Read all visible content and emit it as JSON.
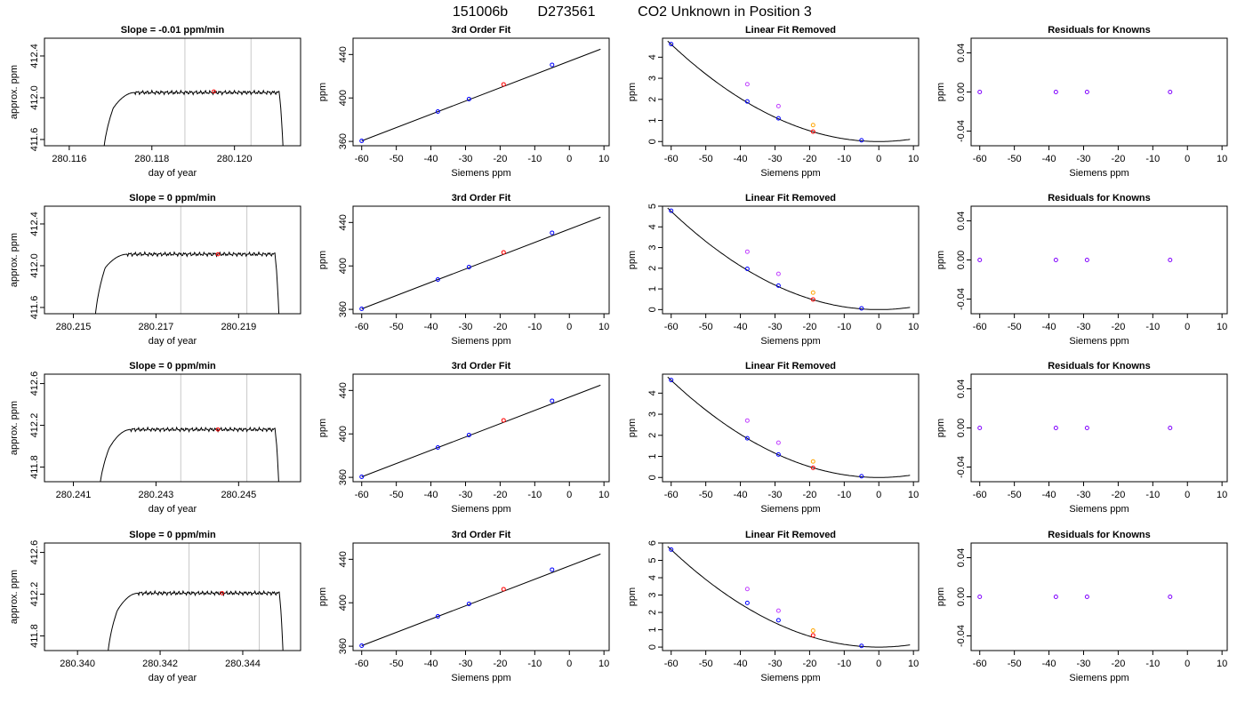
{
  "title": {
    "run": "151006b",
    "tank": "D273561",
    "description": "CO2 Unknown in Position  3"
  },
  "colors": {
    "known": "#0000ff",
    "unknown": "#ff0000",
    "raw_unknown": "#ffa500",
    "raw_known": "#c040ff",
    "fit_line": "#000000",
    "window_line": "#c8c8c8",
    "residual": "#8000ff"
  },
  "chart_data": [
    {
      "type": "line",
      "title": "Slope =  -0.01  ppm/min",
      "xlabel": "day of year",
      "ylabel": "approx. ppm",
      "xlim": [
        280.1154,
        280.1216
      ],
      "ylim": [
        411.54,
        412.57
      ],
      "xticks": [
        "280.116",
        "280.118",
        "280.120"
      ],
      "yticks": [
        "411.6",
        "412.0",
        "412.4"
      ],
      "window": [
        280.1188,
        280.1204
      ],
      "trace": {
        "start": 280.1168,
        "end": 280.1212,
        "rise": [
          412.02,
          412.06,
          412.08
        ],
        "plateau": 412.05,
        "ripple": 0.02,
        "end_drop": 411.3
      },
      "mean_point": [
        280.1195,
        412.06
      ]
    },
    {
      "type": "scatter",
      "title": "3rd Order Fit",
      "xlabel": "Siemens ppm",
      "ylabel": "ppm",
      "xlim": [
        -62.5,
        11.5
      ],
      "ylim": [
        356,
        455
      ],
      "xticks": [
        "-60",
        "-50",
        "-40",
        "-30",
        "-20",
        "-10",
        "0",
        "10"
      ],
      "yticks": [
        "360",
        "400",
        "440"
      ],
      "known_x": [
        -60,
        -38,
        -29,
        -5
      ],
      "known_y": [
        360.5,
        387.5,
        399,
        430.5
      ],
      "unknown_x": [
        -19
      ],
      "unknown_y": [
        412.5
      ],
      "fit": {
        "x0": -60,
        "y0": 360.5,
        "slope": 1.223,
        "x_end": 9
      }
    },
    {
      "type": "scatter",
      "title": "Linear Fit Removed",
      "xlabel": "Siemens ppm",
      "ylabel": "ppm",
      "xlim": [
        -62.5,
        11.5
      ],
      "ylim": [
        -0.2,
        4.9
      ],
      "xticks": [
        "-60",
        "-50",
        "-40",
        "-30",
        "-20",
        "-10",
        "0",
        "10"
      ],
      "yticks": [
        "0",
        "1",
        "2",
        "3",
        "4"
      ],
      "known_x": [
        -60,
        -38,
        -29,
        -5
      ],
      "known_y": [
        4.62,
        1.9,
        1.1,
        0.06
      ],
      "raw_known_x": [
        -38,
        -29
      ],
      "raw_known_y": [
        2.72,
        1.68
      ],
      "unknown_x": [
        -19
      ],
      "unknown_y": [
        0.47
      ],
      "raw_unknown_x": [
        -19
      ],
      "raw_unknown_y": [
        0.78
      ],
      "curve": {
        "a": 0.00128,
        "x_vertex": 0,
        "x_end": 9
      }
    },
    {
      "type": "scatter",
      "title": "Residuals for Knowns",
      "xlabel": "Siemens ppm",
      "ylabel": "ppm",
      "xlim": [
        -62.5,
        11.5
      ],
      "ylim": [
        -0.055,
        0.055
      ],
      "xticks": [
        "-60",
        "-50",
        "-40",
        "-30",
        "-20",
        "-10",
        "0",
        "10"
      ],
      "yticks": [
        "-0.04",
        "0.00",
        "0.04"
      ],
      "x": [
        -60,
        -38,
        -29,
        -5
      ],
      "y": [
        0,
        0,
        0,
        0
      ]
    },
    {
      "type": "line",
      "title": "Slope =  0  ppm/min",
      "xlabel": "day of year",
      "ylabel": "approx. ppm",
      "xlim": [
        280.2143,
        280.2205
      ],
      "ylim": [
        411.54,
        412.57
      ],
      "xticks": [
        "280.215",
        "280.217",
        "280.219"
      ],
      "yticks": [
        "411.6",
        "412.0",
        "412.4"
      ],
      "window": [
        280.2176,
        280.2192
      ],
      "trace": {
        "start": 280.2155,
        "end": 280.22,
        "rise": [
          412.1,
          412.13,
          412.13
        ],
        "plateau": 412.11,
        "ripple": 0.02,
        "end_drop": 411.3
      },
      "mean_point": [
        280.2185,
        412.11
      ]
    },
    {
      "type": "scatter",
      "title": "3rd Order Fit",
      "xlabel": "Siemens ppm",
      "ylabel": "ppm",
      "xlim": [
        -62.5,
        11.5
      ],
      "ylim": [
        356,
        455
      ],
      "xticks": [
        "-60",
        "-50",
        "-40",
        "-30",
        "-20",
        "-10",
        "0",
        "10"
      ],
      "yticks": [
        "360",
        "400",
        "440"
      ],
      "known_x": [
        -60,
        -38,
        -29,
        -5
      ],
      "known_y": [
        360.5,
        387.5,
        399,
        430.5
      ],
      "unknown_x": [
        -19
      ],
      "unknown_y": [
        412.5
      ],
      "fit": {
        "x0": -60,
        "y0": 360.5,
        "slope": 1.223,
        "x_end": 9
      }
    },
    {
      "type": "scatter",
      "title": "Linear Fit Removed",
      "xlabel": "Siemens ppm",
      "ylabel": "ppm",
      "xlim": [
        -62.5,
        11.5
      ],
      "ylim": [
        -0.2,
        5.0
      ],
      "xticks": [
        "-60",
        "-50",
        "-40",
        "-30",
        "-20",
        "-10",
        "0",
        "10"
      ],
      "yticks": [
        "0",
        "1",
        "2",
        "3",
        "4",
        "5"
      ],
      "known_x": [
        -60,
        -38,
        -29,
        -5
      ],
      "known_y": [
        4.78,
        1.97,
        1.16,
        0.06
      ],
      "raw_known_x": [
        -38,
        -29
      ],
      "raw_known_y": [
        2.8,
        1.73
      ],
      "unknown_x": [
        -19
      ],
      "unknown_y": [
        0.49
      ],
      "raw_unknown_x": [
        -19
      ],
      "raw_unknown_y": [
        0.82
      ],
      "curve": {
        "a": 0.00132,
        "x_vertex": 0,
        "x_end": 9
      }
    },
    {
      "type": "scatter",
      "title": "Residuals for Knowns",
      "xlabel": "Siemens ppm",
      "ylabel": "ppm",
      "xlim": [
        -62.5,
        11.5
      ],
      "ylim": [
        -0.055,
        0.055
      ],
      "xticks": [
        "-60",
        "-50",
        "-40",
        "-30",
        "-20",
        "-10",
        "0",
        "10"
      ],
      "yticks": [
        "-0.04",
        "0.00",
        "0.04"
      ],
      "x": [
        -60,
        -38,
        -29,
        -5
      ],
      "y": [
        0,
        0,
        0,
        0
      ]
    },
    {
      "type": "line",
      "title": "Slope =  0  ppm/min",
      "xlabel": "day of year",
      "ylabel": "approx. ppm",
      "xlim": [
        280.2403,
        280.2465
      ],
      "ylim": [
        411.66,
        412.69
      ],
      "xticks": [
        "280.241",
        "280.243",
        "280.245"
      ],
      "yticks": [
        "411.8",
        "412.2",
        "412.6"
      ],
      "window": [
        280.2436,
        280.2452
      ],
      "trace": {
        "start": 280.2416,
        "end": 280.246,
        "rise": [
          412.1,
          412.14,
          412.14
        ],
        "plateau": 412.16,
        "ripple": 0.02,
        "end_drop": 411.4
      },
      "mean_point": [
        280.2445,
        412.16
      ]
    },
    {
      "type": "scatter",
      "title": "3rd Order Fit",
      "xlabel": "Siemens ppm",
      "ylabel": "ppm",
      "xlim": [
        -62.5,
        11.5
      ],
      "ylim": [
        356,
        455
      ],
      "xticks": [
        "-60",
        "-50",
        "-40",
        "-30",
        "-20",
        "-10",
        "0",
        "10"
      ],
      "yticks": [
        "360",
        "400",
        "440"
      ],
      "known_x": [
        -60,
        -38,
        -29,
        -5
      ],
      "known_y": [
        360.5,
        387.5,
        399,
        430.5
      ],
      "unknown_x": [
        -19
      ],
      "unknown_y": [
        412.5
      ],
      "fit": {
        "x0": -60,
        "y0": 360.5,
        "slope": 1.223,
        "x_end": 9
      }
    },
    {
      "type": "scatter",
      "title": "Linear Fit Removed",
      "xlabel": "Siemens ppm",
      "ylabel": "ppm",
      "xlim": [
        -62.5,
        11.5
      ],
      "ylim": [
        -0.2,
        4.9
      ],
      "xticks": [
        "-60",
        "-50",
        "-40",
        "-30",
        "-20",
        "-10",
        "0",
        "10"
      ],
      "yticks": [
        "0",
        "1",
        "2",
        "3",
        "4"
      ],
      "known_x": [
        -60,
        -38,
        -29,
        -5
      ],
      "known_y": [
        4.62,
        1.86,
        1.09,
        0.06
      ],
      "raw_known_x": [
        -38,
        -29
      ],
      "raw_known_y": [
        2.7,
        1.65
      ],
      "unknown_x": [
        -19
      ],
      "unknown_y": [
        0.46
      ],
      "raw_unknown_x": [
        -19
      ],
      "raw_unknown_y": [
        0.76
      ],
      "curve": {
        "a": 0.00128,
        "x_vertex": 0,
        "x_end": 9
      }
    },
    {
      "type": "scatter",
      "title": "Residuals for Knowns",
      "xlabel": "Siemens ppm",
      "ylabel": "ppm",
      "xlim": [
        -62.5,
        11.5
      ],
      "ylim": [
        -0.055,
        0.055
      ],
      "xticks": [
        "-60",
        "-50",
        "-40",
        "-30",
        "-20",
        "-10",
        "0",
        "10"
      ],
      "yticks": [
        "-0.04",
        "0.00",
        "0.04"
      ],
      "x": [
        -60,
        -38,
        -29,
        -5
      ],
      "y": [
        0,
        0,
        0,
        0
      ]
    },
    {
      "type": "line",
      "title": "Slope =  0  ppm/min",
      "xlabel": "day of year",
      "ylabel": "approx. ppm",
      "xlim": [
        280.3392,
        280.3454
      ],
      "ylim": [
        411.66,
        412.69
      ],
      "xticks": [
        "280.340",
        "280.342",
        "280.344"
      ],
      "yticks": [
        "411.8",
        "412.2",
        "412.6"
      ],
      "window": [
        280.3427,
        280.3444
      ],
      "trace": {
        "start": 280.3407,
        "end": 280.345,
        "rise": [
          412.16,
          412.2,
          412.2
        ],
        "plateau": 412.21,
        "ripple": 0.02,
        "end_drop": 411.4
      },
      "mean_point": [
        280.3435,
        412.21
      ]
    },
    {
      "type": "scatter",
      "title": "3rd Order Fit",
      "xlabel": "Siemens ppm",
      "ylabel": "ppm",
      "xlim": [
        -62.5,
        11.5
      ],
      "ylim": [
        356,
        455
      ],
      "xticks": [
        "-60",
        "-50",
        "-40",
        "-30",
        "-20",
        "-10",
        "0",
        "10"
      ],
      "yticks": [
        "360",
        "400",
        "440"
      ],
      "known_x": [
        -60,
        -38,
        -29,
        -5
      ],
      "known_y": [
        360.5,
        387.5,
        399,
        430.5
      ],
      "unknown_x": [
        -19
      ],
      "unknown_y": [
        412.5
      ],
      "fit": {
        "x0": -60,
        "y0": 360.5,
        "slope": 1.223,
        "x_end": 9
      }
    },
    {
      "type": "scatter",
      "title": "Linear Fit Removed",
      "xlabel": "Siemens ppm",
      "ylabel": "ppm",
      "xlim": [
        -62.5,
        11.5
      ],
      "ylim": [
        -0.2,
        6.0
      ],
      "xticks": [
        "-60",
        "-50",
        "-40",
        "-30",
        "-20",
        "-10",
        "0",
        "10"
      ],
      "yticks": [
        "0",
        "1",
        "2",
        "3",
        "4",
        "5",
        "6"
      ],
      "known_x": [
        -60,
        -38,
        -29,
        -5
      ],
      "known_y": [
        5.62,
        2.55,
        1.55,
        0.07
      ],
      "raw_known_x": [
        -38,
        -29
      ],
      "raw_known_y": [
        3.35,
        2.1
      ],
      "unknown_x": [
        -19
      ],
      "unknown_y": [
        0.68
      ],
      "raw_unknown_x": [
        -19
      ],
      "raw_unknown_y": [
        0.95
      ],
      "curve": {
        "a": 0.00156,
        "x_vertex": 0,
        "x_end": 9
      }
    },
    {
      "type": "scatter",
      "title": "Residuals for Knowns",
      "xlabel": "Siemens ppm",
      "ylabel": "ppm",
      "xlim": [
        -62.5,
        11.5
      ],
      "ylim": [
        -0.055,
        0.055
      ],
      "xticks": [
        "-60",
        "-50",
        "-40",
        "-30",
        "-20",
        "-10",
        "0",
        "10"
      ],
      "yticks": [
        "-0.04",
        "0.00",
        "0.04"
      ],
      "x": [
        -60,
        -38,
        -29,
        -5
      ],
      "y": [
        0,
        0,
        0,
        0
      ]
    }
  ]
}
